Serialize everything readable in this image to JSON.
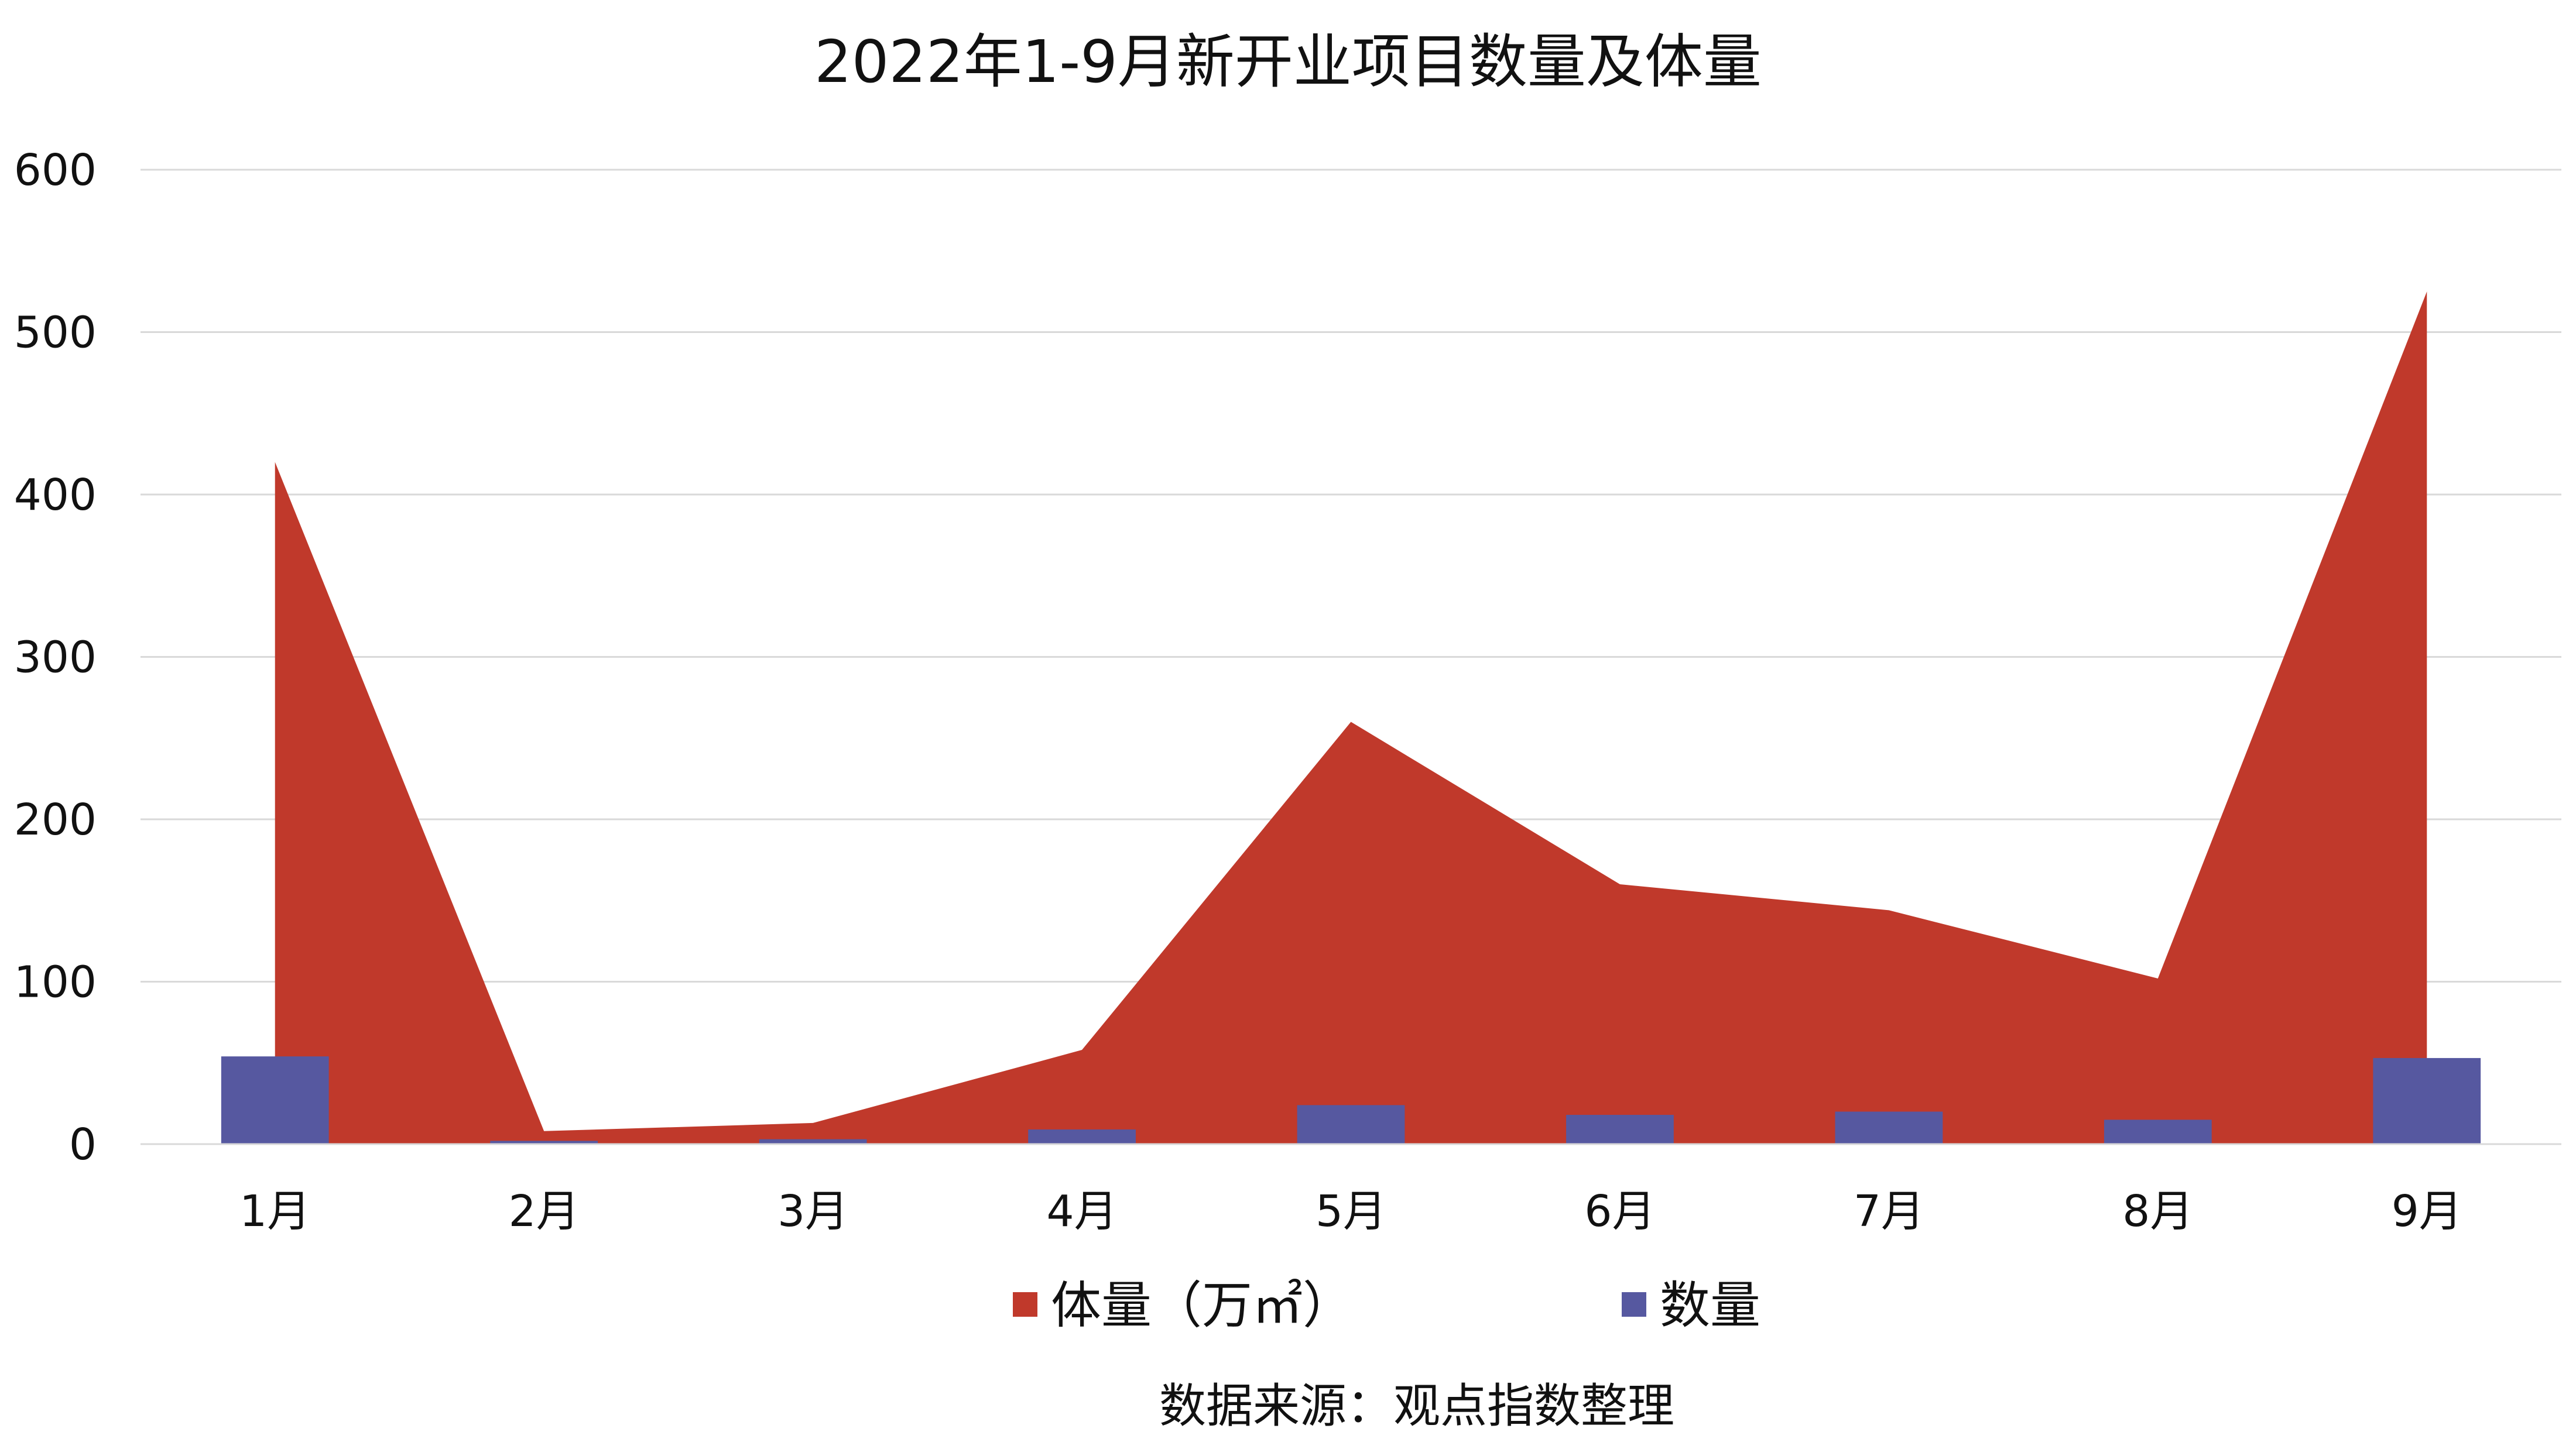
{
  "chart_data": {
    "type": "bar",
    "title": "2022年1-9月新开业项目数量及体量",
    "categories": [
      "1月",
      "2月",
      "3月",
      "4月",
      "5月",
      "6月",
      "7月",
      "8月",
      "9月"
    ],
    "series": [
      {
        "name": "体量（万㎡）",
        "type": "area",
        "color": "#c0392b",
        "values": [
          420,
          8,
          13,
          58,
          260,
          160,
          144,
          102,
          525
        ]
      },
      {
        "name": "数量",
        "type": "bar",
        "color": "#5658a0",
        "values": [
          54,
          2,
          3,
          9,
          24,
          18,
          20,
          15,
          53
        ]
      }
    ],
    "ylim": [
      0,
      600
    ],
    "yticks": [
      0,
      100,
      200,
      300,
      400,
      500,
      600
    ],
    "xlabel": "",
    "ylabel": "",
    "grid": true,
    "legend_position": "bottom"
  },
  "source_note": "数据来源：观点指数整理"
}
